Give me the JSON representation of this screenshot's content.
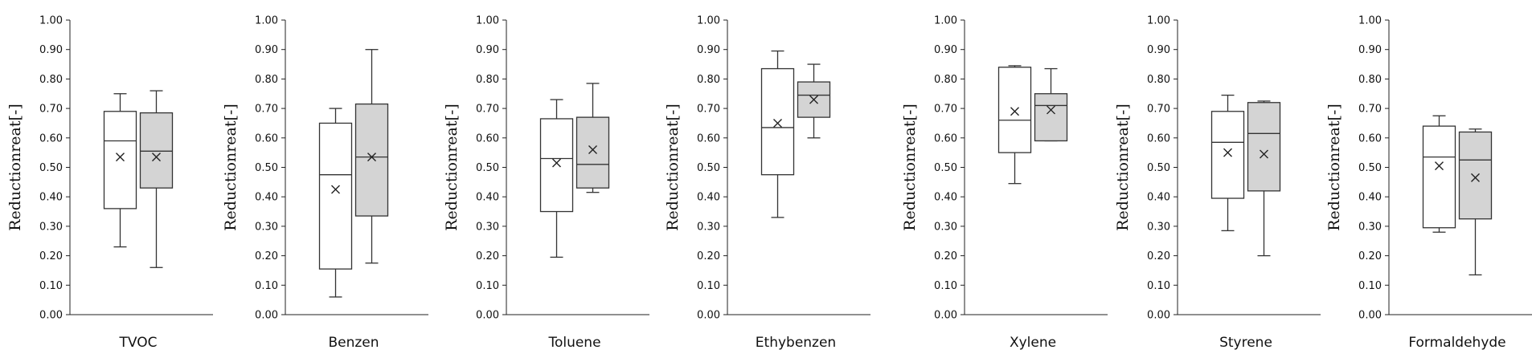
{
  "chart_data": [
    {
      "type": "box",
      "category": "TVOC",
      "ylabel": "Reductionreat[-]",
      "ylim": [
        0,
        1.0
      ],
      "yticks": [
        "0.00",
        "0.10",
        "0.20",
        "0.30",
        "0.40",
        "0.50",
        "0.60",
        "0.70",
        "0.80",
        "0.90",
        "1.00"
      ],
      "boxes": [
        {
          "fill": "#ffffff",
          "min": 0.23,
          "q1": 0.36,
          "median": 0.59,
          "q3": 0.69,
          "max": 0.75,
          "mean": 0.535
        },
        {
          "fill": "#d4d4d4",
          "min": 0.16,
          "q1": 0.43,
          "median": 0.555,
          "q3": 0.685,
          "max": 0.76,
          "mean": 0.535
        }
      ]
    },
    {
      "type": "box",
      "category": "Benzen",
      "ylabel": "Reductionreat[-]",
      "ylim": [
        0,
        1.0
      ],
      "yticks": [
        "0.00",
        "0.10",
        "0.20",
        "0.30",
        "0.40",
        "0.50",
        "0.60",
        "0.70",
        "0.80",
        "0.90",
        "1.00"
      ],
      "boxes": [
        {
          "fill": "#ffffff",
          "min": 0.06,
          "q1": 0.155,
          "median": 0.475,
          "q3": 0.65,
          "max": 0.7,
          "mean": 0.425
        },
        {
          "fill": "#d4d4d4",
          "min": 0.175,
          "q1": 0.335,
          "median": 0.535,
          "q3": 0.715,
          "max": 0.9,
          "mean": 0.535
        }
      ]
    },
    {
      "type": "box",
      "category": "Toluene",
      "ylabel": "Reductionreat[-]",
      "ylim": [
        0,
        1.0
      ],
      "yticks": [
        "0.00",
        "0.10",
        "0.20",
        "0.30",
        "0.40",
        "0.50",
        "0.60",
        "0.70",
        "0.80",
        "0.90",
        "1.00"
      ],
      "boxes": [
        {
          "fill": "#ffffff",
          "min": 0.195,
          "q1": 0.35,
          "median": 0.53,
          "q3": 0.665,
          "max": 0.73,
          "mean": 0.515
        },
        {
          "fill": "#d4d4d4",
          "min": 0.415,
          "q1": 0.43,
          "median": 0.51,
          "q3": 0.67,
          "max": 0.785,
          "mean": 0.56
        }
      ]
    },
    {
      "type": "box",
      "category": "Ethybenzen",
      "ylabel": "Reductionreat[-]",
      "ylim": [
        0,
        1.0
      ],
      "yticks": [
        "0.00",
        "0.10",
        "0.20",
        "0.30",
        "0.40",
        "0.50",
        "0.60",
        "0.70",
        "0.80",
        "0.90",
        "1.00"
      ],
      "boxes": [
        {
          "fill": "#ffffff",
          "min": 0.33,
          "q1": 0.475,
          "median": 0.635,
          "q3": 0.835,
          "max": 0.895,
          "mean": 0.65
        },
        {
          "fill": "#d4d4d4",
          "min": 0.6,
          "q1": 0.67,
          "median": 0.745,
          "q3": 0.79,
          "max": 0.85,
          "mean": 0.73
        }
      ]
    },
    {
      "type": "box",
      "category": "Xylene",
      "ylabel": "Reductionreat[-]",
      "ylim": [
        0,
        1.0
      ],
      "yticks": [
        "0.00",
        "0.10",
        "0.20",
        "0.30",
        "0.40",
        "0.50",
        "0.60",
        "0.70",
        "0.80",
        "0.90",
        "1.00"
      ],
      "boxes": [
        {
          "fill": "#ffffff",
          "min": 0.445,
          "q1": 0.55,
          "median": 0.66,
          "q3": 0.84,
          "max": 0.845,
          "mean": 0.69
        },
        {
          "fill": "#d4d4d4",
          "min": 0.59,
          "q1": 0.59,
          "median": 0.71,
          "q3": 0.75,
          "max": 0.835,
          "mean": 0.695
        }
      ]
    },
    {
      "type": "box",
      "category": "Styrene",
      "ylabel": "Reductionreat[-]",
      "ylim": [
        0,
        1.0
      ],
      "yticks": [
        "0.00",
        "0.10",
        "0.20",
        "0.30",
        "0.40",
        "0.50",
        "0.60",
        "0.70",
        "0.80",
        "0.90",
        "1.00"
      ],
      "boxes": [
        {
          "fill": "#ffffff",
          "min": 0.285,
          "q1": 0.395,
          "median": 0.585,
          "q3": 0.69,
          "max": 0.745,
          "mean": 0.55
        },
        {
          "fill": "#d4d4d4",
          "min": 0.2,
          "q1": 0.42,
          "median": 0.615,
          "q3": 0.72,
          "max": 0.725,
          "mean": 0.545
        }
      ]
    },
    {
      "type": "box",
      "category": "Formaldehyde",
      "ylabel": "Reductionreat[-]",
      "ylim": [
        0,
        1.0
      ],
      "yticks": [
        "0.00",
        "0.10",
        "0.20",
        "0.30",
        "0.40",
        "0.50",
        "0.60",
        "0.70",
        "0.80",
        "0.90",
        "1.00"
      ],
      "boxes": [
        {
          "fill": "#ffffff",
          "min": 0.28,
          "q1": 0.295,
          "median": 0.535,
          "q3": 0.64,
          "max": 0.675,
          "mean": 0.505
        },
        {
          "fill": "#d4d4d4",
          "min": 0.135,
          "q1": 0.325,
          "median": 0.525,
          "q3": 0.62,
          "max": 0.63,
          "mean": 0.465
        }
      ]
    }
  ]
}
